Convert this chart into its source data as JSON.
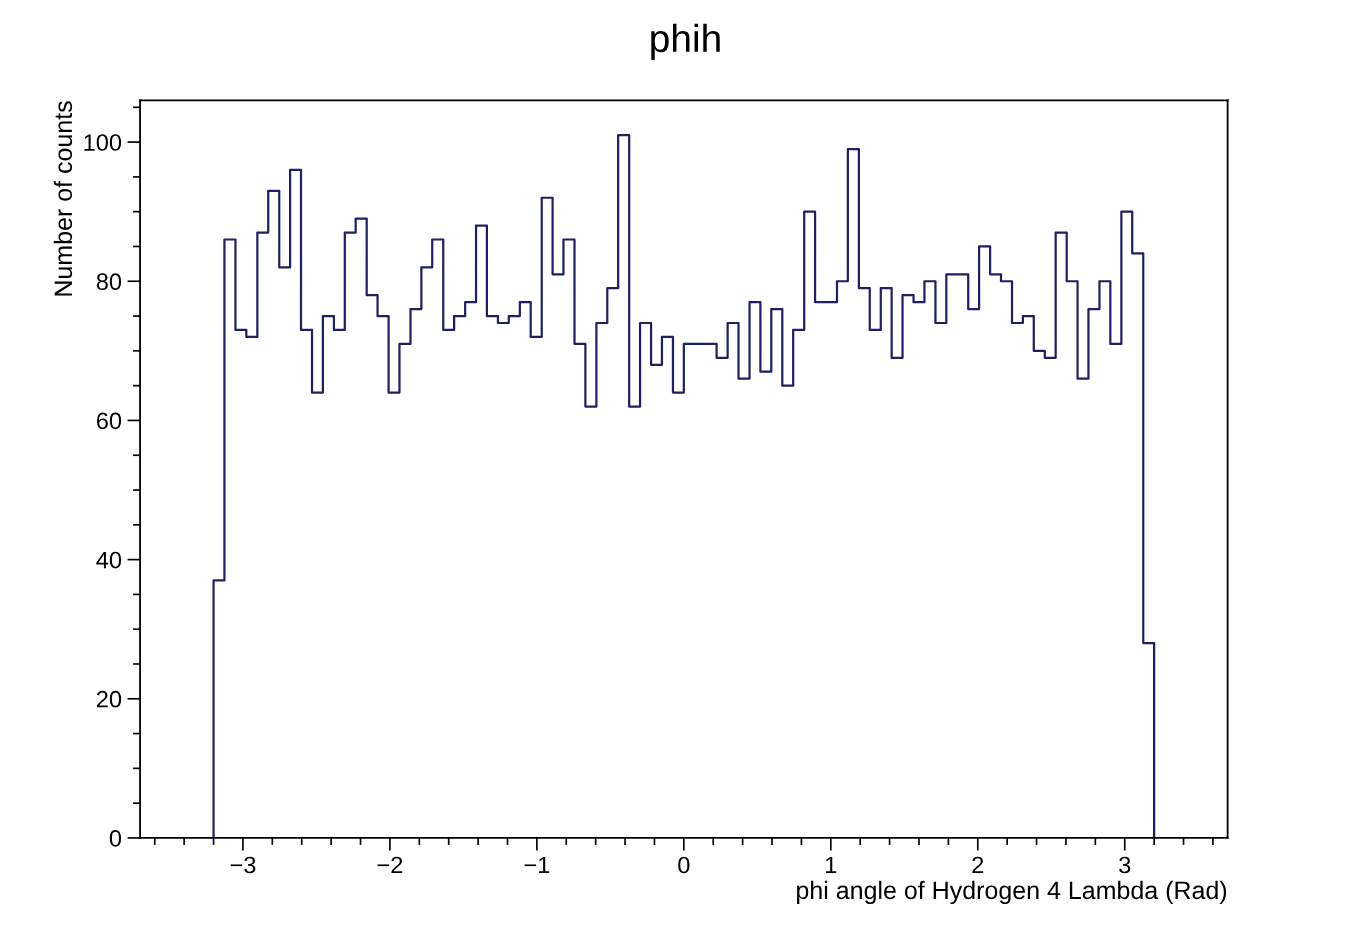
{
  "chart_data": {
    "type": "histogram",
    "title": "phih",
    "xlabel": "phi angle of Hydrogen 4 Lambda (Rad)",
    "ylabel": "Number of counts",
    "bins": [
      -3.2,
      -3.126,
      -3.051,
      -2.977,
      -2.902,
      -2.828,
      -2.753,
      -2.679,
      -2.605,
      -2.53,
      -2.456,
      -2.381,
      -2.307,
      -2.233,
      -2.158,
      -2.084,
      -2.009,
      -1.935,
      -1.86,
      -1.786,
      -1.712,
      -1.637,
      -1.563,
      -1.488,
      -1.414,
      -1.34,
      -1.265,
      -1.191,
      -1.116,
      -1.042,
      -0.967,
      -0.893,
      -0.819,
      -0.744,
      -0.67,
      -0.595,
      -0.521,
      -0.447,
      -0.372,
      -0.298,
      -0.223,
      -0.149,
      -0.074,
      0.0,
      0.074,
      0.149,
      0.223,
      0.298,
      0.372,
      0.447,
      0.521,
      0.595,
      0.67,
      0.744,
      0.819,
      0.893,
      0.967,
      1.042,
      1.116,
      1.191,
      1.265,
      1.34,
      1.414,
      1.488,
      1.563,
      1.637,
      1.712,
      1.786,
      1.86,
      1.935,
      2.009,
      2.084,
      2.158,
      2.233,
      2.307,
      2.381,
      2.456,
      2.53,
      2.605,
      2.679,
      2.753,
      2.828,
      2.902,
      2.977,
      3.051,
      3.126,
      3.2
    ],
    "values": [
      37,
      86,
      73,
      72,
      87,
      93,
      82,
      96,
      73,
      64,
      75,
      73,
      87,
      89,
      78,
      75,
      64,
      71,
      76,
      82,
      86,
      73,
      75,
      77,
      88,
      75,
      74,
      75,
      77,
      72,
      92,
      81,
      86,
      71,
      62,
      74,
      79,
      101,
      62,
      74,
      68,
      72,
      64,
      71,
      71,
      71,
      69,
      74,
      66,
      77,
      67,
      76,
      65,
      73,
      90,
      77,
      77,
      80,
      99,
      79,
      73,
      79,
      69,
      78,
      77,
      80,
      74,
      81,
      81,
      76,
      85,
      81,
      80,
      74,
      75,
      70,
      69,
      87,
      80,
      66,
      76,
      80,
      71,
      90,
      84,
      28
    ],
    "color": "#1f1f66",
    "xlim": [
      -3.7,
      3.7
    ],
    "xticks": [
      -3,
      -2,
      -1,
      0,
      1,
      2,
      3
    ],
    "ylim": [
      0,
      106
    ],
    "yticks": [
      0,
      20,
      40,
      60,
      80,
      100
    ],
    "grid": false
  }
}
